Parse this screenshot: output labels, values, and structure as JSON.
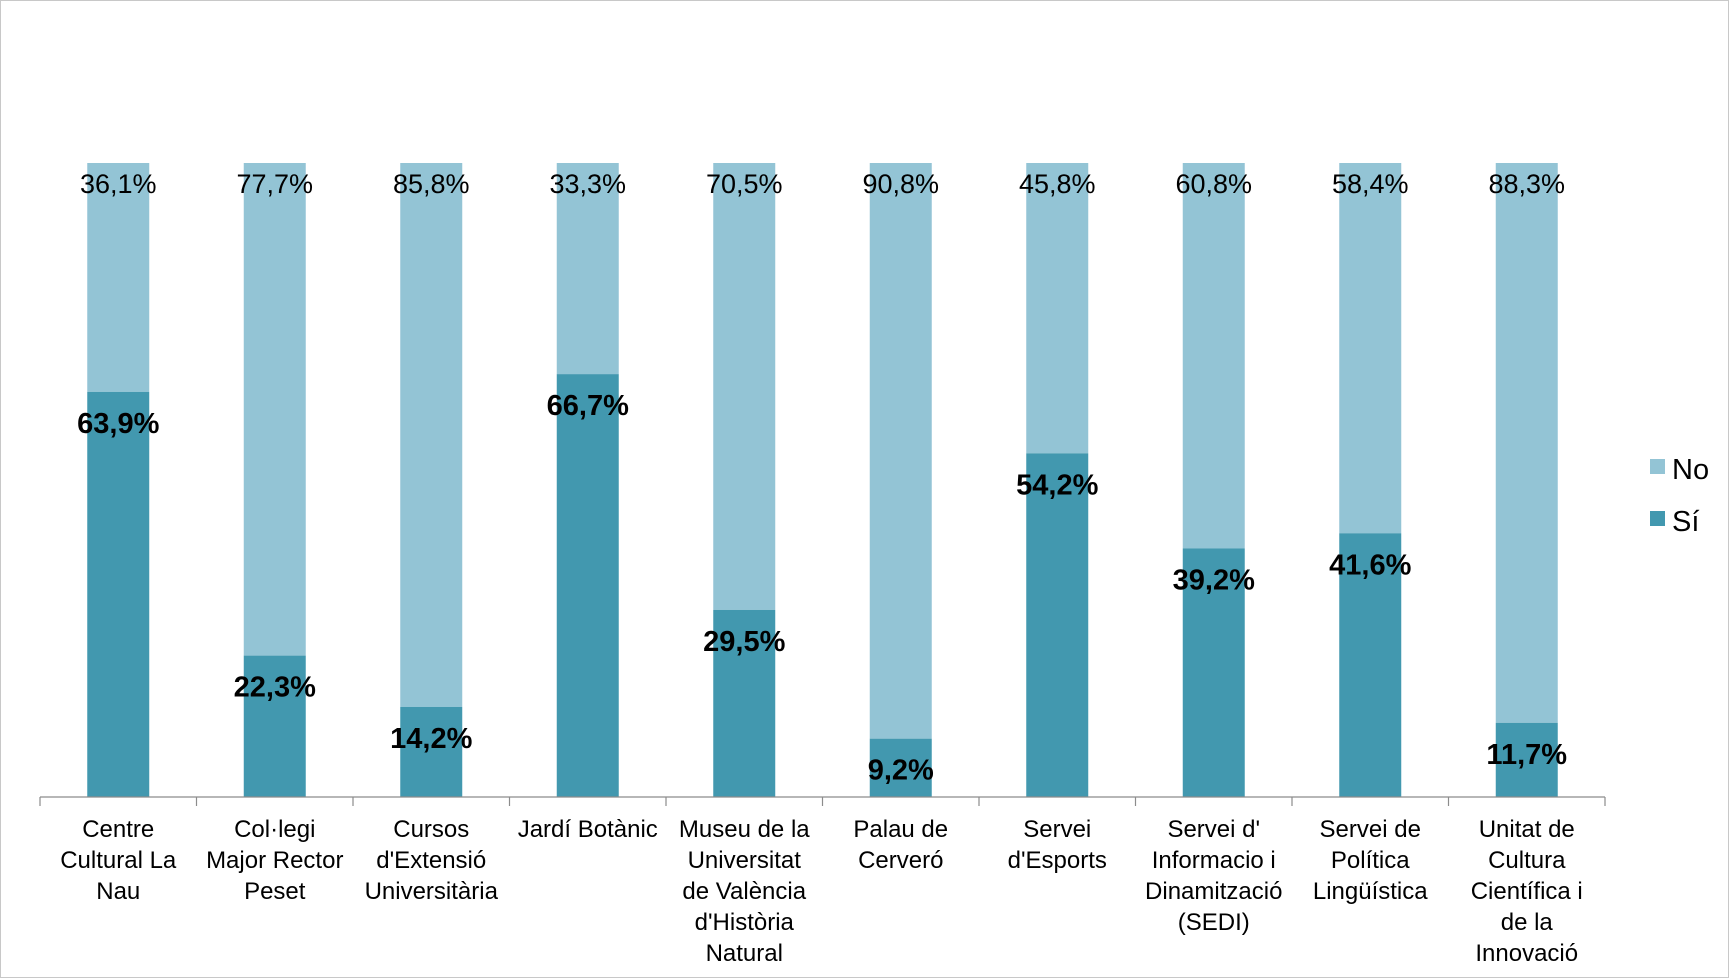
{
  "chart_data": {
    "type": "bar",
    "stacked": true,
    "title": "",
    "xlabel": "",
    "ylabel": "",
    "ylim": [
      0,
      100
    ],
    "grid": false,
    "legend_position": "right",
    "categories": [
      [
        "Centre",
        "Cultural La",
        "Nau"
      ],
      [
        "Col·legi",
        "Major Rector",
        "Peset"
      ],
      [
        "Cursos",
        "d'Extensió",
        "Universitària"
      ],
      [
        "Jardí Botànic"
      ],
      [
        "Museu de la",
        "Universitat",
        "de València",
        "d'Història",
        "Natural"
      ],
      [
        "Palau de",
        "Cerveró"
      ],
      [
        "Servei",
        "d'Esports"
      ],
      [
        "Servei d'",
        "Informacio i",
        "Dinamització",
        "(SEDI)"
      ],
      [
        "Servei de",
        "Política",
        "Lingüística"
      ],
      [
        "Unitat de",
        "Cultura",
        "Científica i",
        "de la",
        "Innovació"
      ]
    ],
    "series": [
      {
        "name": "Sí",
        "color": "#4298AF",
        "values": [
          63.9,
          22.3,
          14.2,
          66.7,
          29.5,
          9.2,
          54.2,
          39.2,
          41.6,
          11.7
        ],
        "labels": [
          "63,9%",
          "22,3%",
          "14,2%",
          "66,7%",
          "29,5%",
          "9,2%",
          "54,2%",
          "39,2%",
          "41,6%",
          "11,7%"
        ]
      },
      {
        "name": "No",
        "color": "#93C4D5",
        "values": [
          36.1,
          77.7,
          85.8,
          33.3,
          70.5,
          90.8,
          45.8,
          60.8,
          58.4,
          88.3
        ],
        "labels": [
          "36,1%",
          "77,7%",
          "85,8%",
          "33,3%",
          "70,5%",
          "90,8%",
          "45,8%",
          "60,8%",
          "58,4%",
          "88,3%"
        ]
      }
    ],
    "legend": [
      {
        "name": "No",
        "color": "#93C4D5"
      },
      {
        "name": "Sí",
        "color": "#4298AF"
      }
    ]
  }
}
